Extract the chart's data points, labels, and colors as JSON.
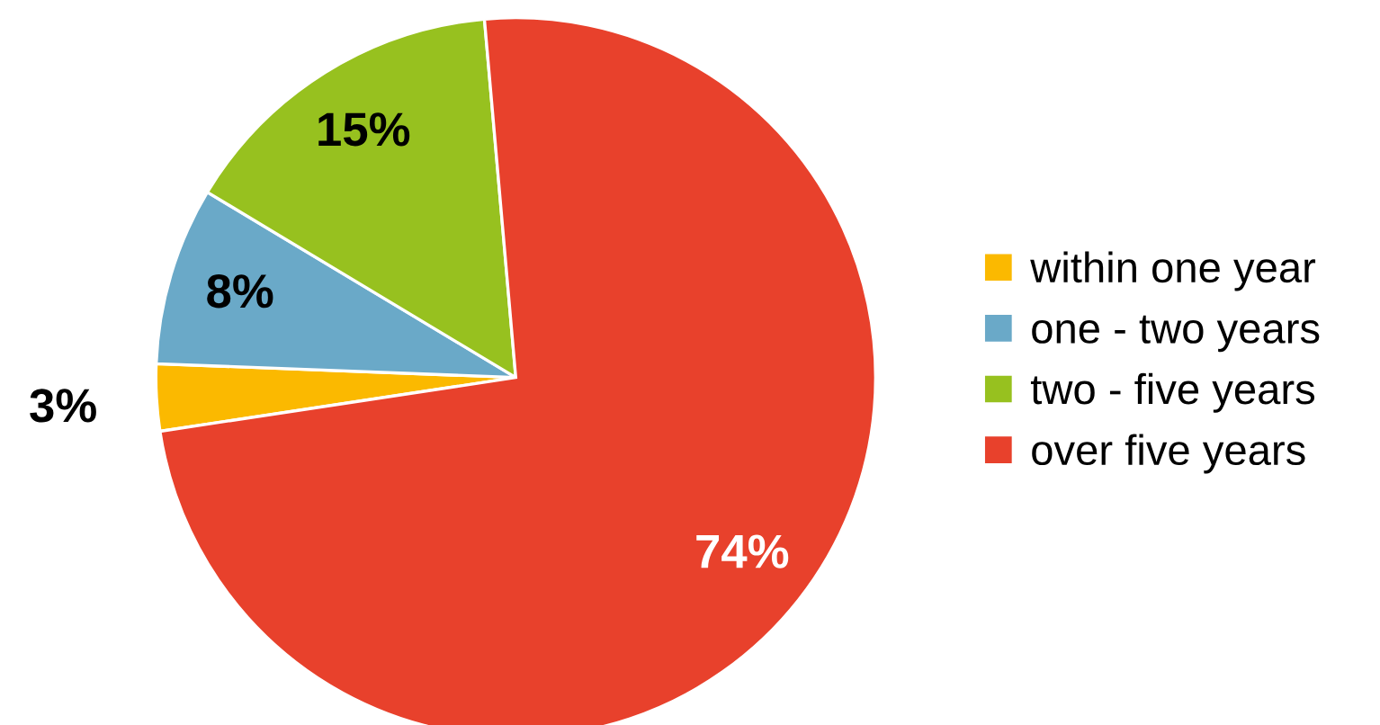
{
  "chart_data": {
    "type": "pie",
    "categories": [
      "within one year",
      "one - two years",
      "two - five years",
      "over five years"
    ],
    "values": [
      3,
      8,
      15,
      74
    ],
    "colors": [
      "#fbb900",
      "#6aa9c8",
      "#97c11f",
      "#e8412c"
    ],
    "value_labels": [
      "3%",
      "8%",
      "15%",
      "74%"
    ],
    "legend": "right"
  }
}
